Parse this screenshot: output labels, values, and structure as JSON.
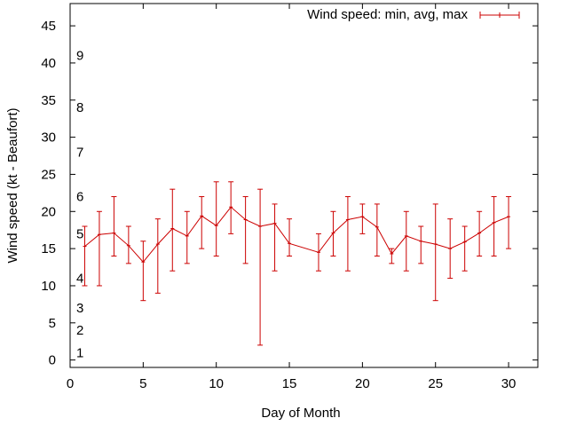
{
  "chart_data": {
    "type": "line",
    "title": "",
    "xlabel": "Day of Month",
    "ylabel": "Wind speed (kt - Beaufort)",
    "xlim": [
      0,
      32
    ],
    "ylim": [
      -1,
      48
    ],
    "xticks": [
      0,
      5,
      10,
      15,
      20,
      25,
      30
    ],
    "yticks": [
      0,
      5,
      10,
      15,
      20,
      25,
      30,
      35,
      40,
      45
    ],
    "beaufort_labels": [
      {
        "label": "1",
        "y": 1
      },
      {
        "label": "2",
        "y": 4
      },
      {
        "label": "3",
        "y": 7
      },
      {
        "label": "4",
        "y": 11
      },
      {
        "label": "5",
        "y": 17
      },
      {
        "label": "6",
        "y": 22
      },
      {
        "label": "7",
        "y": 28
      },
      {
        "label": "8",
        "y": 34
      },
      {
        "label": "9",
        "y": 41
      }
    ],
    "legend": {
      "label": "Wind speed: min, avg, max",
      "position": "top-right"
    },
    "grid": false,
    "series": [
      {
        "name": "Wind speed: min, avg, max",
        "color": "#cc0000",
        "points": [
          {
            "x": 1,
            "avg": 15.3,
            "min": 10,
            "max": 18
          },
          {
            "x": 2,
            "avg": 16.9,
            "min": 10,
            "max": 20
          },
          {
            "x": 3,
            "avg": 17.1,
            "min": 14,
            "max": 22
          },
          {
            "x": 4,
            "avg": 15.4,
            "min": 13,
            "max": 18
          },
          {
            "x": 5,
            "avg": 13.2,
            "min": 8,
            "max": 16
          },
          {
            "x": 6,
            "avg": 15.6,
            "min": 9,
            "max": 19
          },
          {
            "x": 7,
            "avg": 17.7,
            "min": 12,
            "max": 23
          },
          {
            "x": 8,
            "avg": 16.7,
            "min": 13,
            "max": 20
          },
          {
            "x": 9,
            "avg": 19.4,
            "min": 15,
            "max": 22
          },
          {
            "x": 10,
            "avg": 18.1,
            "min": 14,
            "max": 24
          },
          {
            "x": 11,
            "avg": 20.6,
            "min": 17,
            "max": 24
          },
          {
            "x": 12,
            "avg": 18.9,
            "min": 13,
            "max": 22
          },
          {
            "x": 13,
            "avg": 18.0,
            "min": 2,
            "max": 23
          },
          {
            "x": 14,
            "avg": 18.4,
            "min": 12,
            "max": 21
          },
          {
            "x": 15,
            "avg": 15.7,
            "min": 14,
            "max": 19
          },
          {
            "x": 17,
            "avg": 14.5,
            "min": 12,
            "max": 17
          },
          {
            "x": 18,
            "avg": 17.1,
            "min": 14,
            "max": 20
          },
          {
            "x": 19,
            "avg": 18.9,
            "min": 12,
            "max": 22
          },
          {
            "x": 20,
            "avg": 19.3,
            "min": 17,
            "max": 21
          },
          {
            "x": 21,
            "avg": 17.9,
            "min": 14,
            "max": 21
          },
          {
            "x": 22,
            "avg": 14.3,
            "min": 13,
            "max": 15
          },
          {
            "x": 23,
            "avg": 16.7,
            "min": 12,
            "max": 20
          },
          {
            "x": 24,
            "avg": 16.0,
            "min": 13,
            "max": 18
          },
          {
            "x": 25,
            "avg": 15.6,
            "min": 8,
            "max": 21
          },
          {
            "x": 26,
            "avg": 15.0,
            "min": 11,
            "max": 19
          },
          {
            "x": 27,
            "avg": 15.9,
            "min": 12,
            "max": 18
          },
          {
            "x": 28,
            "avg": 17.1,
            "min": 14,
            "max": 20
          },
          {
            "x": 29,
            "avg": 18.5,
            "min": 14,
            "max": 22
          },
          {
            "x": 30,
            "avg": 19.3,
            "min": 15,
            "max": 22
          }
        ]
      }
    ]
  }
}
